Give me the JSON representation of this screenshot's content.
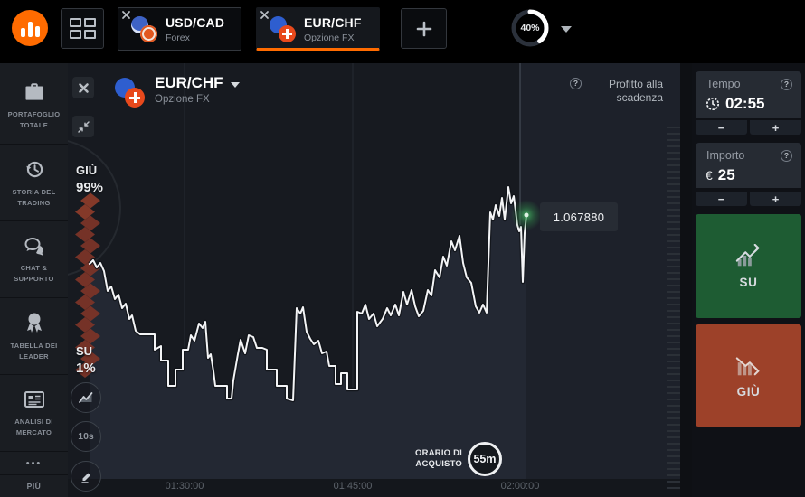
{
  "topbar": {
    "tabs": [
      {
        "title": "USD/CAD",
        "subtitle": "Forex",
        "active": false
      },
      {
        "title": "EUR/CHF",
        "subtitle": "Opzione FX",
        "active": true
      }
    ],
    "gauge": {
      "percent": "40%",
      "value": 40
    }
  },
  "sidebar": {
    "items": [
      {
        "label": "PORTAFOGLIO TOTALE",
        "icon": "briefcase-icon"
      },
      {
        "label": "STORIA DEL TRADING",
        "icon": "history-icon"
      },
      {
        "label": "CHAT & SUPPORTO",
        "icon": "chat-icon"
      },
      {
        "label": "TABELLA DEI LEADER",
        "icon": "medal-icon"
      },
      {
        "label": "ANALISI DI MERCATO",
        "icon": "news-icon"
      }
    ],
    "more_dots": "•••",
    "more_label": "PIÙ"
  },
  "chart": {
    "pair": "EUR/CHF",
    "type_label": "Opzione FX",
    "profit_label": "Profitto alla scadenza",
    "sentiment": {
      "down_label": "GIÙ",
      "down_value": "99%",
      "up_label": "SU",
      "up_value": "1%"
    },
    "price_label": "1.067880",
    "purchase_time_label": "ORARIO DI ACQUISTO",
    "purchase_time_value": "55m",
    "timeframe_label": "10s"
  },
  "chart_data": {
    "type": "line",
    "title": "EUR/CHF Opzione FX price line",
    "current_price": 1.06788,
    "units": "px (chart-local 690x480, axis baseline y=460)",
    "x_ticks": [
      {
        "label": "01:30:00",
        "x": 129
      },
      {
        "label": "01:45:00",
        "x": 315
      },
      {
        "label": "02:00:00",
        "x": 500
      }
    ],
    "deadline_x": 500,
    "axis_y": 460,
    "end_point": [
      507,
      168
    ],
    "sentiment_down_pct": 99,
    "sentiment_up_pct": 1,
    "points": [
      [
        24,
        222
      ],
      [
        28,
        218
      ],
      [
        32,
        226
      ],
      [
        36,
        221
      ],
      [
        40,
        230
      ],
      [
        44,
        252
      ],
      [
        48,
        247
      ],
      [
        52,
        261
      ],
      [
        56,
        256
      ],
      [
        60,
        271
      ],
      [
        64,
        266
      ],
      [
        68,
        283
      ],
      [
        71,
        279
      ],
      [
        75,
        296
      ],
      [
        80,
        300
      ],
      [
        96,
        300
      ],
      [
        96,
        317
      ],
      [
        103,
        313
      ],
      [
        103,
        329
      ],
      [
        111,
        329
      ],
      [
        111,
        357
      ],
      [
        119,
        357
      ],
      [
        119,
        339
      ],
      [
        127,
        339
      ],
      [
        127,
        317
      ],
      [
        133,
        317
      ],
      [
        136,
        301
      ],
      [
        140,
        307
      ],
      [
        145,
        288
      ],
      [
        149,
        293
      ],
      [
        152,
        286
      ],
      [
        155,
        326
      ],
      [
        158,
        322
      ],
      [
        161,
        341
      ],
      [
        163,
        357
      ],
      [
        176,
        357
      ],
      [
        176,
        371
      ],
      [
        181,
        371
      ],
      [
        183,
        351
      ],
      [
        188,
        322
      ],
      [
        191,
        306
      ],
      [
        196,
        321
      ],
      [
        200,
        301
      ],
      [
        205,
        303
      ],
      [
        209,
        315
      ],
      [
        215,
        315
      ],
      [
        220,
        317
      ],
      [
        220,
        339
      ],
      [
        231,
        339
      ],
      [
        231,
        357
      ],
      [
        242,
        357
      ],
      [
        242,
        371
      ],
      [
        249,
        373
      ],
      [
        253,
        271
      ],
      [
        257,
        277
      ],
      [
        260,
        270
      ],
      [
        264,
        297
      ],
      [
        268,
        305
      ],
      [
        272,
        311
      ],
      [
        277,
        307
      ],
      [
        281,
        321
      ],
      [
        286,
        319
      ],
      [
        289,
        335
      ],
      [
        296,
        335
      ],
      [
        296,
        355
      ],
      [
        302,
        355
      ],
      [
        302,
        343
      ],
      [
        309,
        343
      ],
      [
        309,
        361
      ],
      [
        320,
        361
      ],
      [
        320,
        275
      ],
      [
        325,
        277
      ],
      [
        329,
        267
      ],
      [
        333,
        283
      ],
      [
        338,
        277
      ],
      [
        342,
        291
      ],
      [
        348,
        283
      ],
      [
        353,
        271
      ],
      [
        357,
        279
      ],
      [
        362,
        267
      ],
      [
        366,
        279
      ],
      [
        371,
        253
      ],
      [
        375,
        267
      ],
      [
        380,
        251
      ],
      [
        384,
        269
      ],
      [
        388,
        280
      ],
      [
        393,
        274
      ],
      [
        398,
        251
      ],
      [
        402,
        257
      ],
      [
        406,
        229
      ],
      [
        411,
        237
      ],
      [
        415,
        214
      ],
      [
        419,
        224
      ],
      [
        424,
        197
      ],
      [
        428,
        207
      ],
      [
        433,
        191
      ],
      [
        437,
        221
      ],
      [
        441,
        237
      ],
      [
        446,
        243
      ],
      [
        451,
        269
      ],
      [
        455,
        276
      ],
      [
        459,
        267
      ],
      [
        463,
        276
      ],
      [
        467,
        165
      ],
      [
        470,
        173
      ],
      [
        473,
        157
      ],
      [
        477,
        169
      ],
      [
        480,
        149
      ],
      [
        483,
        173
      ],
      [
        487,
        137
      ],
      [
        490,
        155
      ],
      [
        493,
        147
      ],
      [
        497,
        179
      ],
      [
        499,
        186
      ],
      [
        501,
        181
      ],
      [
        503,
        242
      ],
      [
        505,
        188
      ],
      [
        507,
        168
      ]
    ]
  },
  "panel": {
    "tempo": {
      "label": "Tempo",
      "value": "02:55"
    },
    "importo": {
      "label": "Importo",
      "currency": "€",
      "value": "25"
    },
    "minus": "−",
    "plus": "+",
    "up": {
      "label": "SU",
      "color": "#1e5c33"
    },
    "down": {
      "label": "GIÙ",
      "color": "#9d4129"
    }
  },
  "icons": {
    "help": "?"
  },
  "colors": {
    "accent": "#ff6b00",
    "up": "#1e5c33",
    "down": "#9d4129",
    "line": "#f3f4f6",
    "sentiment_down": "#7d3528"
  }
}
